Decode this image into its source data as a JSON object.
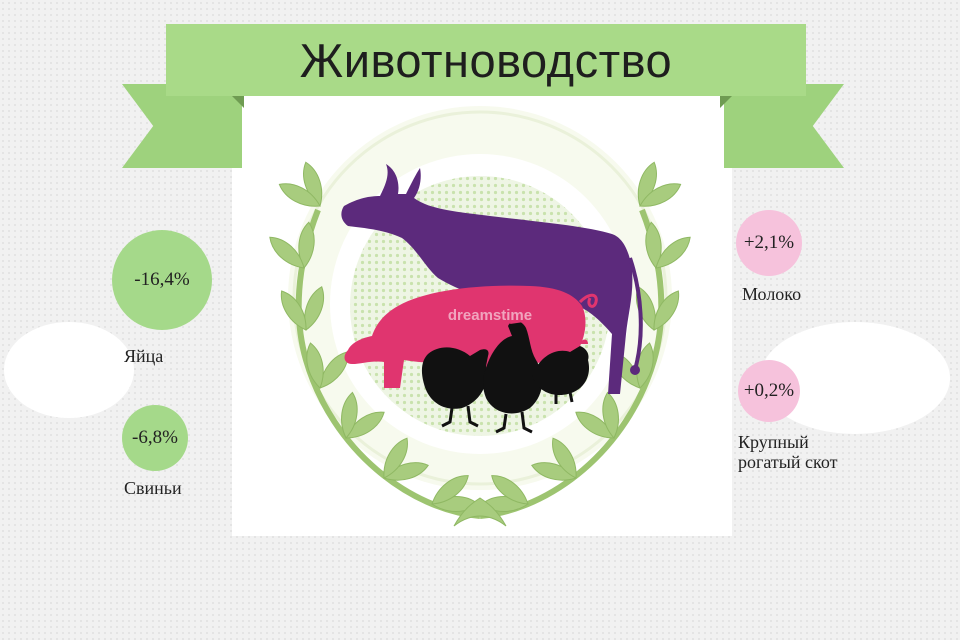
{
  "header": {
    "title": "Животноводство"
  },
  "stats": [
    {
      "value": "-16,4%",
      "label": "Яйца"
    },
    {
      "value": "-6,8%",
      "label": "Свиньи"
    },
    {
      "value": "+2,1%",
      "label": "Молоко"
    },
    {
      "value": "+0,2%",
      "label_line1": "Крупный",
      "label_line2": "рогатый скот"
    }
  ],
  "watermark": "dreamstime",
  "colors": {
    "banner": "#a9da88",
    "wreath": "#a8cc7e",
    "bull": "#5c2a7c",
    "pig": "#e0356f",
    "hens": "#111111",
    "green_bubble": "#a5d98a",
    "pink_bubble": "#f6c2dc"
  },
  "icons": [
    "laurel-wreath-icon",
    "bull-icon",
    "pig-icon",
    "hen-icon",
    "rooster-icon"
  ]
}
